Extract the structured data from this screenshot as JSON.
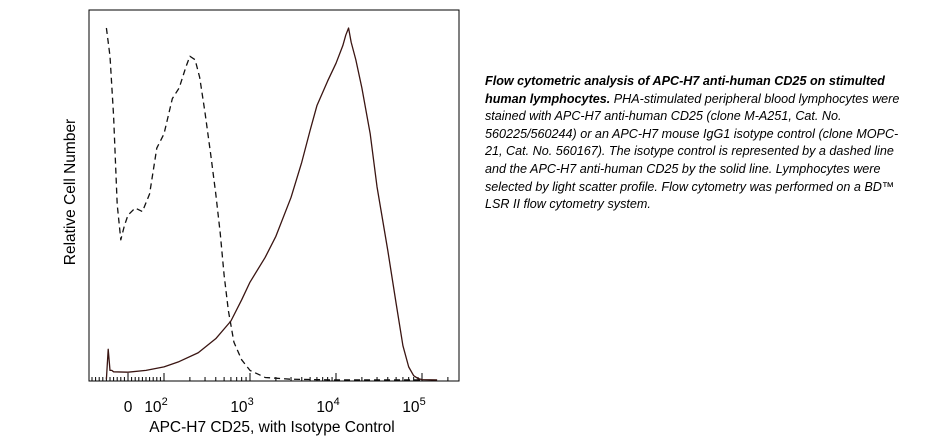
{
  "chart_data": {
    "type": "histogram",
    "xlabel": "APC-H7 CD25, with Isotype Control",
    "ylabel": "Relative Cell Number",
    "x_scale": "biexponential",
    "x_tick_labels": [
      {
        "value": 0,
        "base": "0",
        "exp": ""
      },
      {
        "value": 100,
        "base": "10",
        "exp": "2"
      },
      {
        "value": 1000,
        "base": "10",
        "exp": "3"
      },
      {
        "value": 10000,
        "base": "10",
        "exp": "4"
      },
      {
        "value": 100000,
        "base": "10",
        "exp": "5"
      }
    ],
    "series": [
      {
        "style": "dashed",
        "color": "#111111",
        "points": [
          [
            -60,
            100
          ],
          [
            -50,
            92
          ],
          [
            -40,
            75
          ],
          [
            -30,
            50
          ],
          [
            -20,
            40
          ],
          [
            -10,
            44
          ],
          [
            0,
            47
          ],
          [
            20,
            49
          ],
          [
            40,
            48
          ],
          [
            60,
            53
          ],
          [
            80,
            66
          ],
          [
            100,
            70
          ],
          [
            125,
            80
          ],
          [
            150,
            83
          ],
          [
            180,
            89
          ],
          [
            200,
            92
          ],
          [
            230,
            91
          ],
          [
            260,
            86
          ],
          [
            300,
            76
          ],
          [
            350,
            64
          ],
          [
            400,
            53
          ],
          [
            450,
            42
          ],
          [
            500,
            30
          ],
          [
            560,
            20
          ],
          [
            650,
            11
          ],
          [
            800,
            6
          ],
          [
            1000,
            3
          ],
          [
            1500,
            1
          ],
          [
            3000,
            0.5
          ],
          [
            10000,
            0.3
          ],
          [
            100000,
            0.3
          ]
        ]
      },
      {
        "style": "solid",
        "color": "#3a1512",
        "points": [
          [
            -60,
            0.5
          ],
          [
            -55,
            9
          ],
          [
            -50,
            3
          ],
          [
            -45,
            3
          ],
          [
            -40,
            2.6
          ],
          [
            0,
            2.5
          ],
          [
            50,
            3
          ],
          [
            100,
            4
          ],
          [
            150,
            5.5
          ],
          [
            250,
            8
          ],
          [
            400,
            12
          ],
          [
            600,
            17
          ],
          [
            800,
            23
          ],
          [
            1000,
            28
          ],
          [
            1500,
            35
          ],
          [
            2000,
            41
          ],
          [
            3000,
            52
          ],
          [
            4000,
            62
          ],
          [
            5000,
            71
          ],
          [
            6000,
            78
          ],
          [
            8000,
            85
          ],
          [
            10000,
            90
          ],
          [
            12000,
            95
          ],
          [
            13000,
            98
          ],
          [
            14000,
            100
          ],
          [
            15000,
            96
          ],
          [
            17000,
            91
          ],
          [
            20000,
            83
          ],
          [
            25000,
            70
          ],
          [
            30000,
            55
          ],
          [
            40000,
            37
          ],
          [
            50000,
            22
          ],
          [
            60000,
            10
          ],
          [
            70000,
            4
          ],
          [
            80000,
            1.5
          ],
          [
            90000,
            0.7
          ],
          [
            100000,
            0.4
          ],
          [
            150000,
            0.3
          ]
        ]
      }
    ]
  },
  "caption": {
    "title": "Flow cytometric analysis of APC-H7 anti-human CD25 on stimulted human lymphocytes.",
    "body": " PHA-stimulated peripheral blood lymphocytes were stained with APC-H7 anti-human CD25 (clone M-A251, Cat. No. 560225/560244) or an APC-H7 mouse IgG1 isotype control (clone MOPC-21, Cat. No. 560167).  The isotype control is represented by a dashed line and the APC-H7 anti-human CD25 by the solid line.  Lymphocytes were selected by light scatter profile. Flow cytometry was performed on a BD™ LSR II flow cytometry system."
  }
}
